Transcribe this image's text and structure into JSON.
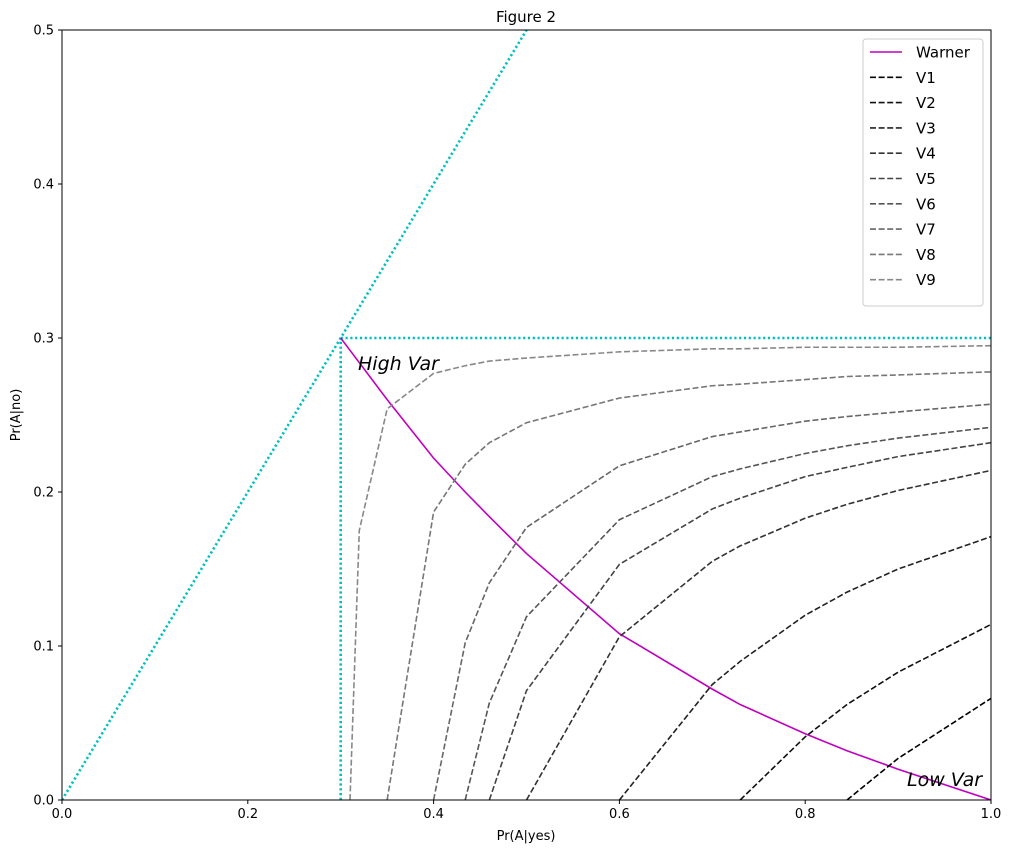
{
  "chart_data": {
    "type": "line",
    "title": "Figure 2",
    "xlabel": "Pr(A|yes)",
    "ylabel": "Pr(A|no)",
    "xlim": [
      0,
      1
    ],
    "ylim": [
      0,
      0.5
    ],
    "xticks": [
      {
        "value": 0,
        "label": "0.0"
      },
      0.2,
      0.4,
      0.6,
      0.8,
      {
        "value": 1,
        "label": "1.0"
      }
    ],
    "yticks": [
      {
        "value": 0,
        "label": "0.0"
      },
      0.1,
      0.2,
      0.3,
      0.4,
      0.5
    ],
    "grid": false,
    "legend": "upper right",
    "x": [
      0.3,
      0.31,
      0.32,
      0.35,
      0.4,
      0.434,
      0.46,
      0.5,
      0.6,
      0.7,
      0.73,
      0.8,
      0.845,
      0.9,
      1.0
    ],
    "series": [
      {
        "name": "Warner",
        "color": "#bf00bf",
        "dash": "solid",
        "values": [
          0.3,
          0.292,
          0.284,
          0.26,
          0.222,
          0.2,
          0.184,
          0.16,
          0.108,
          0.072,
          0.062,
          0.043,
          0.032,
          0.02,
          0
        ]
      },
      {
        "name": "V1",
        "color": "#000000",
        "dash": "dashed",
        "values": [
          null,
          null,
          null,
          null,
          null,
          null,
          null,
          null,
          null,
          null,
          null,
          null,
          0,
          0.027,
          0.066
        ]
      },
      {
        "name": "V2",
        "color": "#111111",
        "dash": "dashed",
        "values": [
          null,
          null,
          null,
          null,
          null,
          null,
          null,
          null,
          null,
          null,
          0,
          0.041,
          0.062,
          0.083,
          0.114
        ]
      },
      {
        "name": "V3",
        "color": "#222222",
        "dash": "dashed",
        "values": [
          null,
          null,
          null,
          null,
          null,
          null,
          null,
          null,
          0,
          0.075,
          0.09,
          0.12,
          0.135,
          0.15,
          0.171
        ]
      },
      {
        "name": "V4",
        "color": "#333333",
        "dash": "dashed",
        "values": [
          null,
          null,
          null,
          null,
          null,
          null,
          null,
          0,
          0.106,
          0.155,
          0.165,
          0.183,
          0.192,
          0.201,
          0.214
        ]
      },
      {
        "name": "V5",
        "color": "#444444",
        "dash": "dashed",
        "values": [
          null,
          null,
          null,
          null,
          null,
          null,
          0,
          0.071,
          0.153,
          0.189,
          0.196,
          0.21,
          0.216,
          0.223,
          0.232
        ]
      },
      {
        "name": "V6",
        "color": "#555555",
        "dash": "dashed",
        "values": [
          null,
          null,
          null,
          null,
          null,
          0,
          0.063,
          0.119,
          0.182,
          0.21,
          0.215,
          0.225,
          0.23,
          0.235,
          0.242
        ]
      },
      {
        "name": "V7",
        "color": "#666666",
        "dash": "dashed",
        "values": [
          null,
          null,
          null,
          null,
          0,
          0.102,
          0.141,
          0.177,
          0.217,
          0.236,
          0.239,
          0.246,
          0.249,
          0.252,
          0.257
        ]
      },
      {
        "name": "V8",
        "color": "#777777",
        "dash": "dashed",
        "values": [
          null,
          null,
          null,
          0,
          0.187,
          0.218,
          0.232,
          0.245,
          0.261,
          0.269,
          0.27,
          0.273,
          0.275,
          0.276,
          0.278
        ]
      },
      {
        "name": "V9",
        "color": "#888888",
        "dash": "dashed",
        "values": [
          null,
          0,
          0.175,
          0.254,
          0.277,
          0.282,
          0.285,
          0.287,
          0.291,
          0.293,
          0.293,
          0.294,
          0.294,
          0.294,
          0.295
        ]
      }
    ],
    "reference_color": "#00bfbf",
    "reference_lines": [
      {
        "x": [
          0,
          0.5
        ],
        "y": [
          0,
          0.5
        ]
      },
      {
        "x": [
          0.3,
          1
        ],
        "y": [
          0.3,
          0.3
        ]
      },
      {
        "x": [
          0.3,
          0.3
        ],
        "y": [
          0,
          0.3
        ]
      }
    ],
    "annotations": [
      "High Var",
      "Low Var"
    ]
  }
}
